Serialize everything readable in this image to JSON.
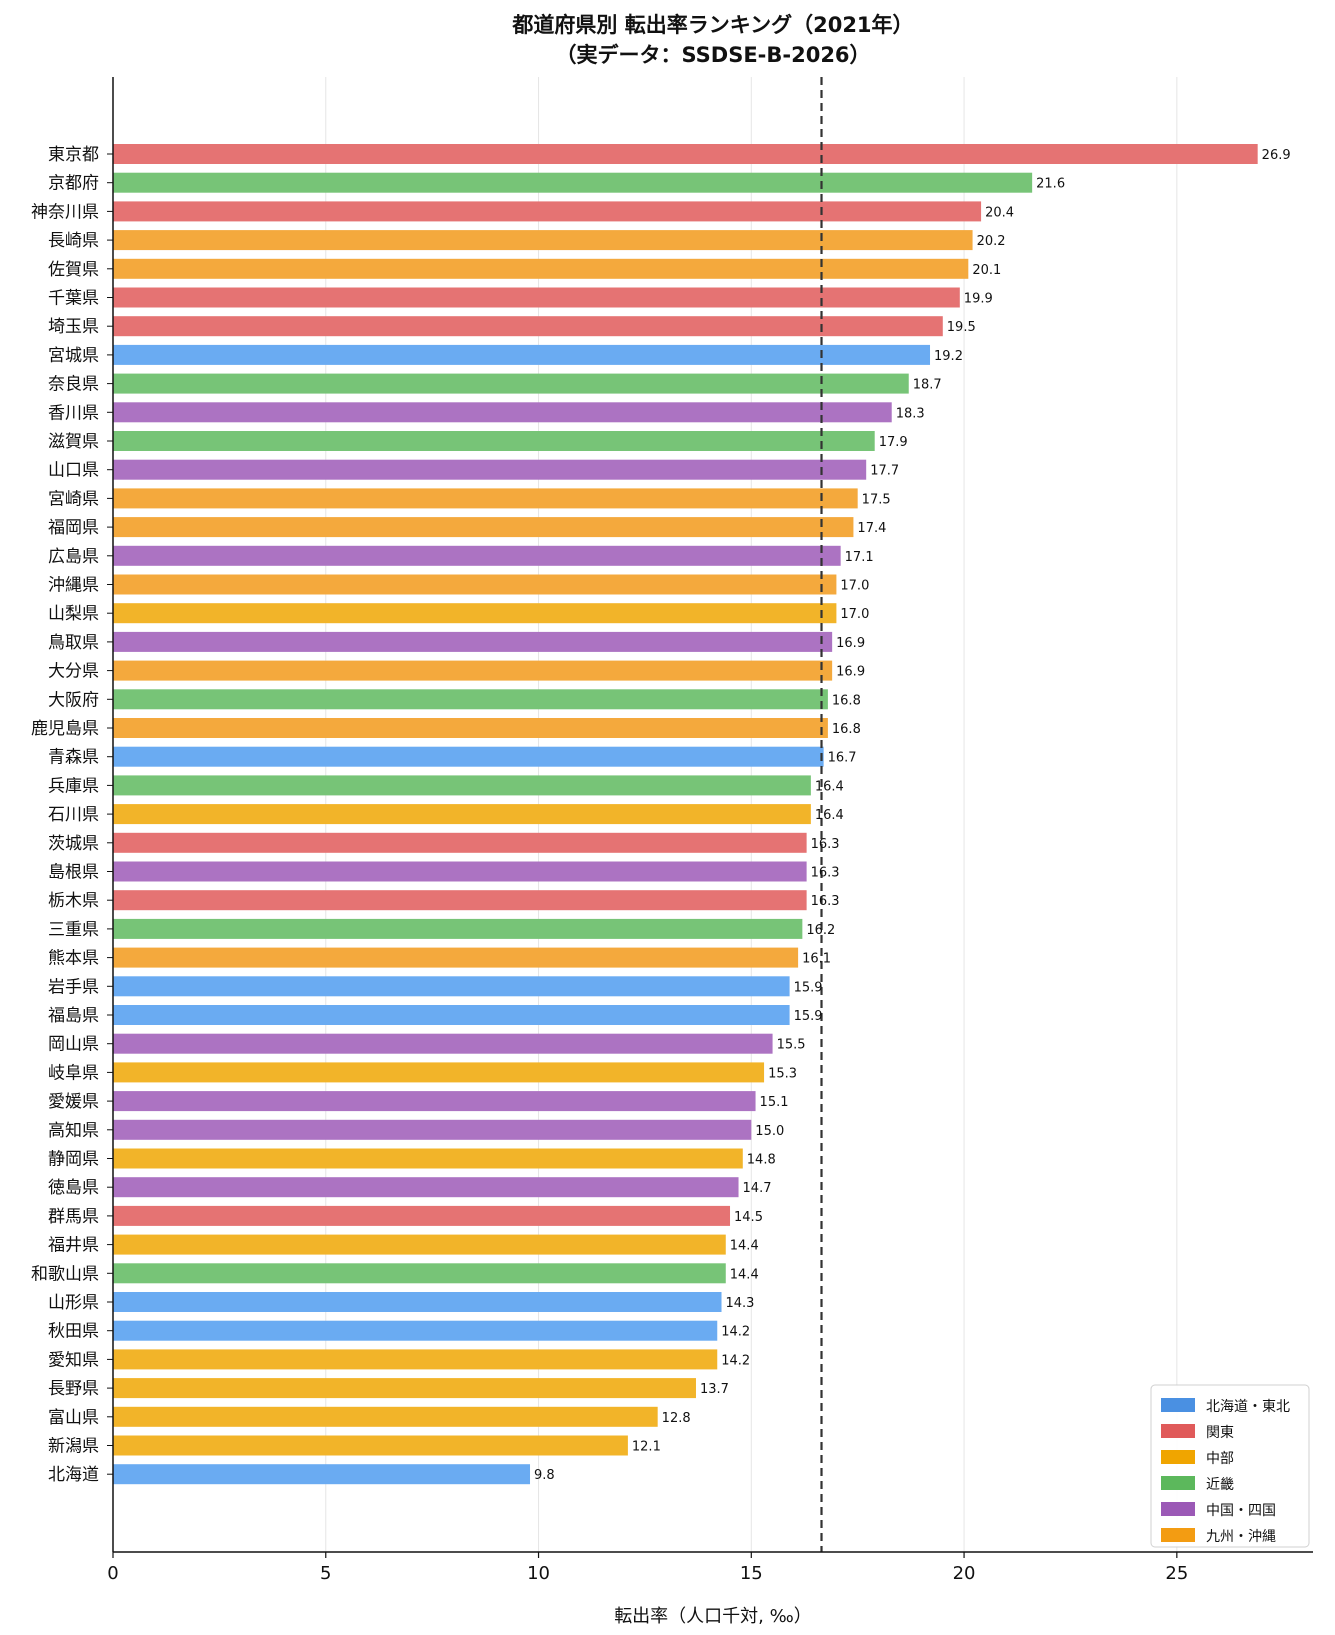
{
  "chart_data": {
    "type": "bar",
    "orientation": "horizontal",
    "title": "都道府県別 転出率ランキング（2021年）",
    "subtitle": "（実データ：SSDSE-B-2026）",
    "xlabel": "転出率（人口千対, ‰）",
    "ylabel": "",
    "xlim": [
      0,
      28.2
    ],
    "xticks": [
      0,
      5,
      10,
      15,
      20,
      25
    ],
    "grid": "vertical",
    "reference_line": {
      "value": 16.65,
      "style": "dashed"
    },
    "legend_position": "bottom-right",
    "legend": [
      {
        "name": "北海道・東北",
        "color": "#4a90e2"
      },
      {
        "name": "関東",
        "color": "#e05a5a"
      },
      {
        "name": "中部",
        "color": "#f0a500"
      },
      {
        "name": "近畿",
        "color": "#5cb85c"
      },
      {
        "name": "中国・四国",
        "color": "#9b59b6"
      },
      {
        "name": "九州・沖縄",
        "color": "#f39c12"
      }
    ],
    "categories": [
      "東京都",
      "京都府",
      "神奈川県",
      "長崎県",
      "佐賀県",
      "千葉県",
      "埼玉県",
      "宮城県",
      "奈良県",
      "香川県",
      "滋賀県",
      "山口県",
      "宮崎県",
      "福岡県",
      "広島県",
      "沖縄県",
      "山梨県",
      "鳥取県",
      "大分県",
      "大阪府",
      "鹿児島県",
      "青森県",
      "兵庫県",
      "石川県",
      "茨城県",
      "島根県",
      "栃木県",
      "三重県",
      "熊本県",
      "岩手県",
      "福島県",
      "岡山県",
      "岐阜県",
      "愛媛県",
      "高知県",
      "静岡県",
      "徳島県",
      "群馬県",
      "福井県",
      "和歌山県",
      "山形県",
      "秋田県",
      "愛知県",
      "長野県",
      "富山県",
      "新潟県",
      "北海道"
    ],
    "values": [
      26.9,
      21.6,
      20.4,
      20.2,
      20.1,
      19.9,
      19.5,
      19.2,
      18.7,
      18.3,
      17.9,
      17.7,
      17.5,
      17.4,
      17.1,
      17.0,
      17.0,
      16.9,
      16.9,
      16.8,
      16.8,
      16.7,
      16.4,
      16.4,
      16.3,
      16.3,
      16.3,
      16.2,
      16.1,
      15.9,
      15.9,
      15.5,
      15.3,
      15.1,
      15.0,
      14.8,
      14.7,
      14.5,
      14.4,
      14.4,
      14.3,
      14.2,
      14.2,
      13.7,
      12.8,
      12.1,
      9.8
    ],
    "value_labels": [
      "26.9",
      "21.6",
      "20.4",
      "20.2",
      "20.1",
      "19.9",
      "19.5",
      "19.2",
      "18.7",
      "18.3",
      "17.9",
      "17.7",
      "17.5",
      "17.4",
      "17.1",
      "17.0",
      "17.0",
      "16.9",
      "16.9",
      "16.8",
      "16.8",
      "16.7",
      "16.4",
      "16.4",
      "16.3",
      "16.3",
      "16.3",
      "16.2",
      "16.1",
      "15.9",
      "15.9",
      "15.5",
      "15.3",
      "15.1",
      "15.0",
      "14.8",
      "14.7",
      "14.5",
      "14.4",
      "14.4",
      "14.3",
      "14.2",
      "14.2",
      "13.7",
      "12.8",
      "12.1",
      "9.8"
    ],
    "regions": [
      "関東",
      "近畿",
      "関東",
      "九州・沖縄",
      "九州・沖縄",
      "関東",
      "関東",
      "北海道・東北",
      "近畿",
      "中国・四国",
      "近畿",
      "中国・四国",
      "九州・沖縄",
      "九州・沖縄",
      "中国・四国",
      "九州・沖縄",
      "中部",
      "中国・四国",
      "九州・沖縄",
      "近畿",
      "九州・沖縄",
      "北海道・東北",
      "近畿",
      "中部",
      "関東",
      "中国・四国",
      "関東",
      "近畿",
      "九州・沖縄",
      "北海道・東北",
      "北海道・東北",
      "中国・四国",
      "中部",
      "中国・四国",
      "中国・四国",
      "中部",
      "中国・四国",
      "関東",
      "中部",
      "近畿",
      "北海道・東北",
      "北海道・東北",
      "中部",
      "中部",
      "中部",
      "中部",
      "北海道・東北"
    ]
  }
}
